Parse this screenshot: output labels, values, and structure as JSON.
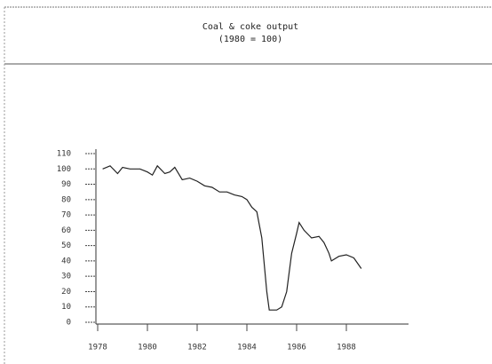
{
  "chart_data": {
    "type": "line",
    "title": "Coal & coke output",
    "subtitle": "(1980 = 100)",
    "x": [
      1978.2,
      1978.5,
      1978.8,
      1979.0,
      1979.3,
      1979.7,
      1980.0,
      1980.2,
      1980.4,
      1980.7,
      1980.9,
      1981.1,
      1981.4,
      1981.7,
      1982.0,
      1982.3,
      1982.6,
      1982.9,
      1983.2,
      1983.5,
      1983.8,
      1984.0,
      1984.2,
      1984.4,
      1984.6,
      1984.8,
      1984.9,
      1985.2,
      1985.4,
      1985.6,
      1985.8,
      1986.0,
      1986.1,
      1986.3,
      1986.6,
      1986.9,
      1987.1,
      1987.3,
      1987.4,
      1987.7,
      1988.0,
      1988.3,
      1988.6
    ],
    "series": [
      {
        "name": "Coal & coke output",
        "color": "#222222",
        "values": [
          100,
          102,
          97,
          101,
          100,
          100,
          98,
          96,
          102,
          97,
          98,
          101,
          93,
          94,
          92,
          89,
          88,
          85,
          85,
          83,
          82,
          80,
          75,
          72,
          55,
          20,
          8,
          8,
          10,
          20,
          45,
          58,
          65,
          60,
          55,
          56,
          52,
          45,
          40,
          43,
          44,
          42,
          35
        ]
      }
    ],
    "xlim": [
      1978,
      1990.5
    ],
    "xticks": [
      1978,
      1980,
      1982,
      1984,
      1986,
      1988
    ],
    "ylim": [
      0,
      110
    ],
    "yticks": [
      0,
      10,
      20,
      30,
      40,
      50,
      60,
      70,
      80,
      90,
      100,
      110
    ]
  }
}
